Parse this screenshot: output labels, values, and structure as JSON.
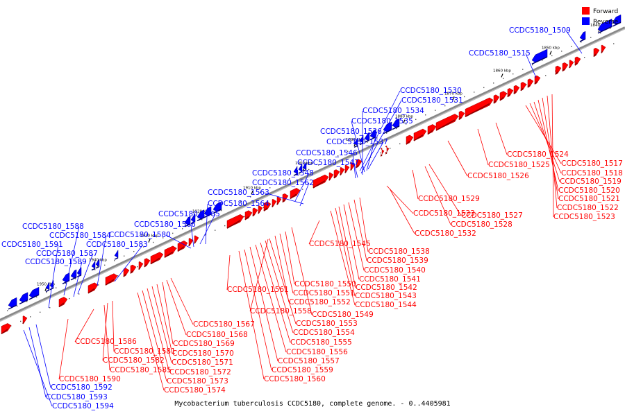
{
  "caption": "Mycobacterium tuberculosis CCDC5180, complete genome. - 0..4405981",
  "legend": [
    {
      "label": "Forward",
      "color": "#ff0000"
    },
    {
      "label": "Reverse",
      "color": "#0000ff"
    }
  ],
  "colors": {
    "forward": "#ff0000",
    "reverse": "#0000ff",
    "axis": "#888888"
  },
  "ticks": [
    "1840 kbp",
    "1850 kbp",
    "1860 kbp",
    "1870 kbp",
    "1880 kbp",
    "1890 kbp",
    "1900 kbp",
    "1910 kbp",
    "1920 kbp",
    "1930 kbp",
    "1940 kbp",
    "1950 kbp"
  ],
  "reverse_labels": [
    "CCDC5180_1509",
    "CCDC5180_1515",
    "CCDC5180_1530",
    "CCDC5180_1531",
    "CCDC5180_1534",
    "CCDC5180_1535",
    "CCDC5180_1536",
    "CCDC5180_1537",
    "CCDC5180_1546",
    "CCDC5180_1547",
    "CCDC5180_1548",
    "CCDC5180_1562",
    "CCDC5180_1563",
    "CCDC5180_1564",
    "CCDC5180_1565",
    "CCDC5180_1566",
    "CCDC5180_1580",
    "CCDC5180_1583",
    "CCDC5180_1584",
    "CCDC5180_1587",
    "CCDC5180_1588",
    "CCDC5180_1589",
    "CCDC5180_1591",
    "CCDC5180_1592",
    "CCDC5180_1593",
    "CCDC5180_1594"
  ],
  "forward_labels": [
    "CCDC5180_1517",
    "CCDC5180_1518",
    "CCDC5180_1519",
    "CCDC5180_1520",
    "CCDC5180_1521",
    "CCDC5180_1522",
    "CCDC5180_1523",
    "CCDC5180_1524",
    "CCDC5180_1525",
    "CCDC5180_1526",
    "CCDC5180_1527",
    "CCDC5180_1528",
    "CCDC5180_1529",
    "CCDC5180_1532",
    "CCDC5180_1533",
    "CCDC5180_1538",
    "CCDC5180_1539",
    "CCDC5180_1540",
    "CCDC5180_1541",
    "CCDC5180_1542",
    "CCDC5180_1543",
    "CCDC5180_1544",
    "CCDC5180_1545",
    "CCDC5180_1549",
    "CCDC5180_1550",
    "CCDC5180_1551",
    "CCDC5180_1552",
    "CCDC5180_1553",
    "CCDC5180_1554",
    "CCDC5180_1555",
    "CCDC5180_1556",
    "CCDC5180_1557",
    "CCDC5180_1558",
    "CCDC5180_1559",
    "CCDC5180_1560",
    "CCDC5180_1561",
    "CCDC5180_1567",
    "CCDC5180_1568",
    "CCDC5180_1569",
    "CCDC5180_1570",
    "CCDC5180_1571",
    "CCDC5180_1572",
    "CCDC5180_1573",
    "CCDC5180_1574",
    "CCDC5180_1581",
    "CCDC5180_1582",
    "CCDC5180_1585",
    "CCDC5180_1586",
    "CCDC5180_1590"
  ]
}
